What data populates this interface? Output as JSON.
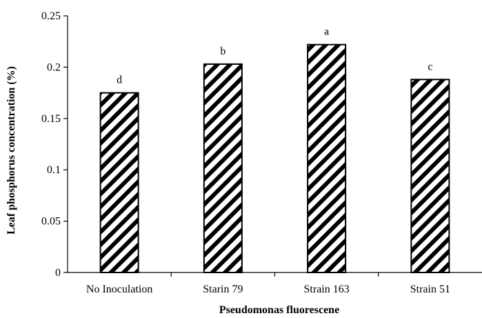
{
  "chart_data": {
    "type": "bar",
    "title": "",
    "xlabel": "Pseudomonas fluorescene",
    "ylabel": "Leaf phosphorus concentration (%)",
    "categories": [
      "No Inoculation",
      "Starin 79",
      "Strain 163",
      "Strain 51"
    ],
    "values": [
      0.175,
      0.203,
      0.222,
      0.188
    ],
    "bar_labels": [
      "d",
      "b",
      "a",
      "c"
    ],
    "ylim": [
      0,
      0.25
    ],
    "yticks": [
      "0",
      "0.05",
      "0.1",
      "0.15",
      "0.2",
      "0.25"
    ],
    "ytick_values": [
      0,
      0.05,
      0.1,
      0.15,
      0.2,
      0.25
    ],
    "grid": false,
    "legend": "none",
    "bar_fill": "black diagonal hatch on white"
  }
}
